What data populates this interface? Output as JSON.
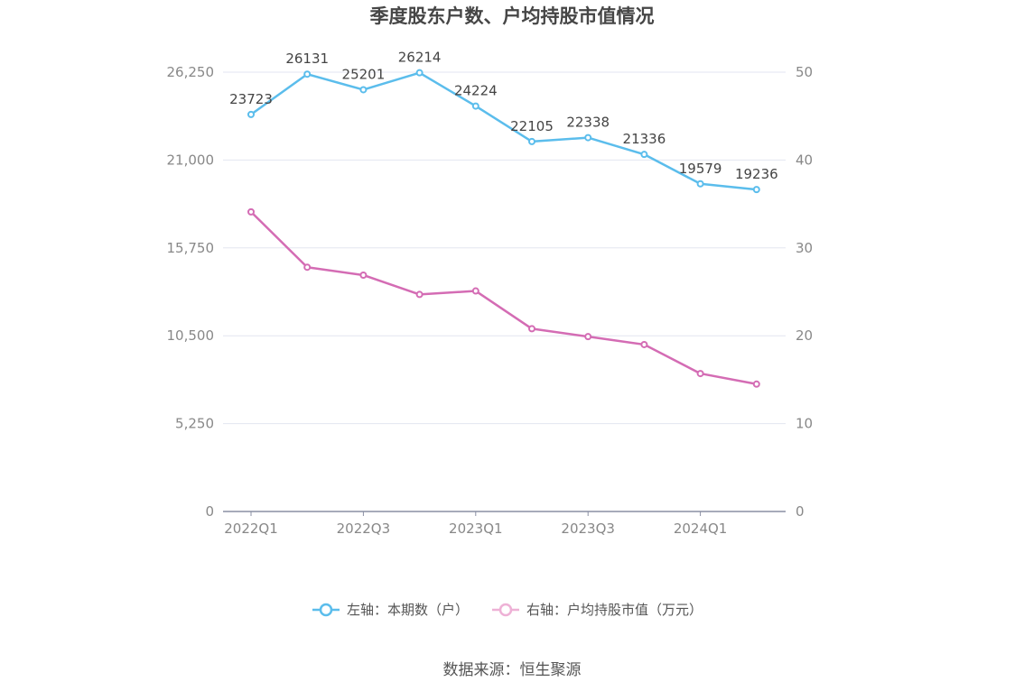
{
  "chart_data": {
    "type": "line",
    "title": "季度股东户数、户均持股市值情况",
    "categories": [
      "2022Q1",
      "2022Q2",
      "2022Q3",
      "2022Q4",
      "2023Q1",
      "2023Q2",
      "2023Q3",
      "2023Q4",
      "2024Q1",
      "2024Q2"
    ],
    "x_tick_labels": [
      "2022Q1",
      "2022Q3",
      "2023Q1",
      "2023Q3",
      "2024Q1"
    ],
    "series": [
      {
        "name": "左轴：本期数（户）",
        "axis": "left",
        "color": "#5bbdec",
        "values": [
          23723,
          26131,
          25201,
          26214,
          24224,
          22105,
          22338,
          21336,
          19579,
          19236
        ],
        "data_labels": [
          "23723",
          "26131",
          "25201",
          "26214",
          "24224",
          "22105",
          "22338",
          "21336",
          "19579",
          "19236"
        ]
      },
      {
        "name": "右轴：户均持股市值（万元）",
        "axis": "right",
        "color": "#d46cb4",
        "legend_color": "#eeb1d6",
        "values": [
          34.1,
          27.8,
          26.9,
          24.7,
          25.1,
          20.8,
          19.9,
          19.0,
          15.7,
          14.5
        ]
      }
    ],
    "y_left": {
      "ylim": [
        0,
        26250
      ],
      "ticks": [
        0,
        5250,
        10500,
        15750,
        21000,
        26250
      ],
      "tick_labels": [
        "0",
        "5,250",
        "10,500",
        "15,750",
        "21,000",
        "26,250"
      ]
    },
    "y_right": {
      "ylim": [
        0,
        50
      ],
      "ticks": [
        0,
        10,
        20,
        30,
        40,
        50
      ],
      "tick_labels": [
        "0",
        "10",
        "20",
        "30",
        "40",
        "50"
      ]
    },
    "grid": true,
    "legend_position": "bottom-center"
  },
  "source": "数据来源：恒生聚源"
}
